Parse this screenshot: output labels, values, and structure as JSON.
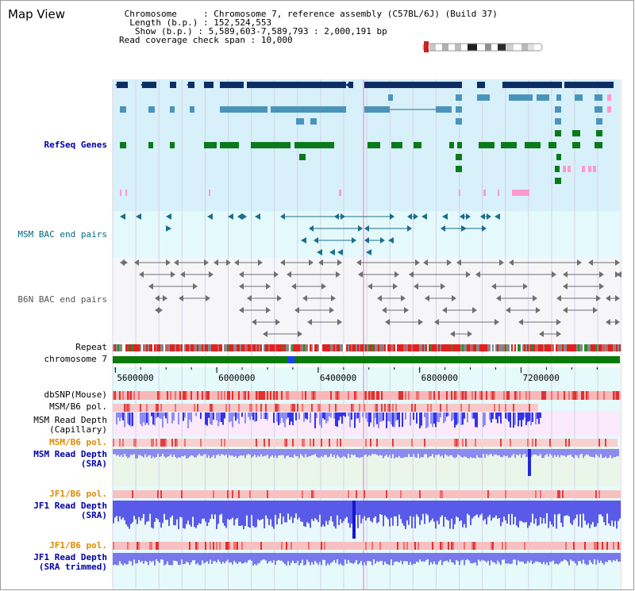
{
  "title": "Map View",
  "info": {
    "line1_key": "Chromosome",
    "line1_val": "Chromosome 7, reference assembly (C57BL/6J) (Build 37)",
    "line2_key": "Length (b.p.)",
    "line2_val": "152,524,553",
    "line3_key": "Show (b.p.)",
    "line3_val": "5,589,603-7,589,793 : 2,000,191 bp",
    "line4_key": "Read coverage check span",
    "line4_val": "10,000"
  },
  "tracks": {
    "refseq": "RefSeq Genes",
    "msm_bac": "MSM BAC end pairs",
    "b6n_bac": "B6N BAC end pairs",
    "repeat": "Repeat",
    "chromosome": "chromosome 7",
    "dbsnp": "dbSNP(Mouse)",
    "msm_pol1": "MSM/B6 pol.",
    "msm_cap1": "MSM Read Depth",
    "msm_cap2": "(Capillary)",
    "msm_pol2": "MSM/B6 pol.",
    "msm_sra1": "MSM Read Depth",
    "msm_sra2": "(SRA)",
    "jf1_pol1": "JF1/B6 pol.",
    "jf1_sra1": "JF1 Read Depth",
    "jf1_sra2": "(SRA)",
    "jf1_pol2": "JF1/B6 pol.",
    "jf1_tr1": "JF1 Read Depth",
    "jf1_tr2": "(SRA trimmed)"
  },
  "axis": {
    "ticks": [
      "5600000",
      "6000000",
      "6400000",
      "6800000",
      "7200000"
    ],
    "tick_values": [
      5600000,
      6000000,
      6400000,
      6800000,
      7200000
    ],
    "range": [
      5589603,
      7589793
    ]
  },
  "colors": {
    "refseq_bg": "#d8f0fa",
    "msm_bac_bg": "#e4f9fb",
    "dark_gene": "#0d2d63",
    "mid_gene": "#4a94bc",
    "green_gene": "#0a7a1a",
    "pink": "#ff9acd",
    "teal": "#1a6f8c",
    "gray": "#707070",
    "chromosome": "#0a7a0a",
    "chromosome_highlight": "#1f3fff"
  }
}
